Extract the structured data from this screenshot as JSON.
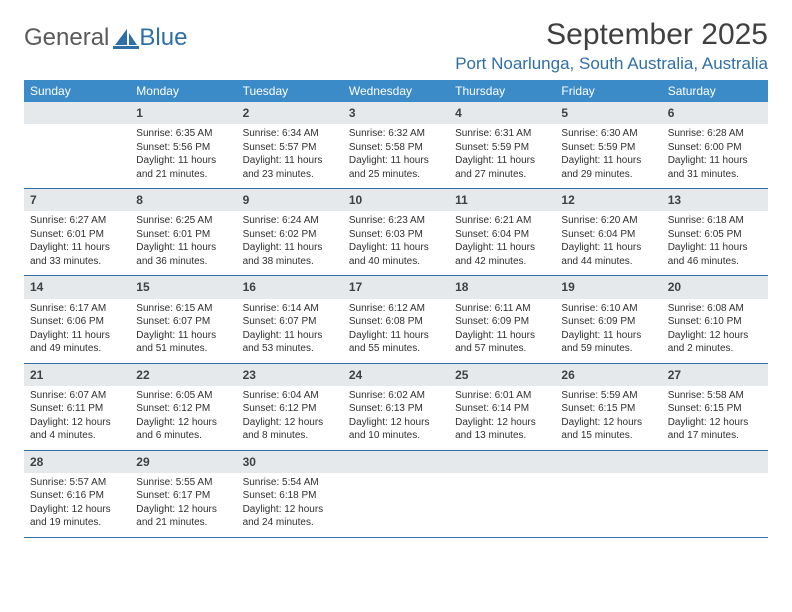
{
  "brand": {
    "part1": "General",
    "part2": "Blue"
  },
  "title": "September 2025",
  "location": "Port Noarlunga, South Australia, Australia",
  "colors": {
    "header_bg": "#3b8bc9",
    "header_text": "#ffffff",
    "daynum_bg": "#e6e9ec",
    "divider": "#2f6fa8",
    "location_text": "#2f6fa8",
    "body_text": "#303030",
    "title_text": "#404040"
  },
  "weekdays": [
    "Sunday",
    "Monday",
    "Tuesday",
    "Wednesday",
    "Thursday",
    "Friday",
    "Saturday"
  ],
  "weeks": [
    [
      {
        "blank": true
      },
      {
        "n": "1",
        "sun": "Sunrise: 6:35 AM",
        "set": "Sunset: 5:56 PM",
        "d1": "Daylight: 11 hours",
        "d2": "and 21 minutes."
      },
      {
        "n": "2",
        "sun": "Sunrise: 6:34 AM",
        "set": "Sunset: 5:57 PM",
        "d1": "Daylight: 11 hours",
        "d2": "and 23 minutes."
      },
      {
        "n": "3",
        "sun": "Sunrise: 6:32 AM",
        "set": "Sunset: 5:58 PM",
        "d1": "Daylight: 11 hours",
        "d2": "and 25 minutes."
      },
      {
        "n": "4",
        "sun": "Sunrise: 6:31 AM",
        "set": "Sunset: 5:59 PM",
        "d1": "Daylight: 11 hours",
        "d2": "and 27 minutes."
      },
      {
        "n": "5",
        "sun": "Sunrise: 6:30 AM",
        "set": "Sunset: 5:59 PM",
        "d1": "Daylight: 11 hours",
        "d2": "and 29 minutes."
      },
      {
        "n": "6",
        "sun": "Sunrise: 6:28 AM",
        "set": "Sunset: 6:00 PM",
        "d1": "Daylight: 11 hours",
        "d2": "and 31 minutes."
      }
    ],
    [
      {
        "n": "7",
        "sun": "Sunrise: 6:27 AM",
        "set": "Sunset: 6:01 PM",
        "d1": "Daylight: 11 hours",
        "d2": "and 33 minutes."
      },
      {
        "n": "8",
        "sun": "Sunrise: 6:25 AM",
        "set": "Sunset: 6:01 PM",
        "d1": "Daylight: 11 hours",
        "d2": "and 36 minutes."
      },
      {
        "n": "9",
        "sun": "Sunrise: 6:24 AM",
        "set": "Sunset: 6:02 PM",
        "d1": "Daylight: 11 hours",
        "d2": "and 38 minutes."
      },
      {
        "n": "10",
        "sun": "Sunrise: 6:23 AM",
        "set": "Sunset: 6:03 PM",
        "d1": "Daylight: 11 hours",
        "d2": "and 40 minutes."
      },
      {
        "n": "11",
        "sun": "Sunrise: 6:21 AM",
        "set": "Sunset: 6:04 PM",
        "d1": "Daylight: 11 hours",
        "d2": "and 42 minutes."
      },
      {
        "n": "12",
        "sun": "Sunrise: 6:20 AM",
        "set": "Sunset: 6:04 PM",
        "d1": "Daylight: 11 hours",
        "d2": "and 44 minutes."
      },
      {
        "n": "13",
        "sun": "Sunrise: 6:18 AM",
        "set": "Sunset: 6:05 PM",
        "d1": "Daylight: 11 hours",
        "d2": "and 46 minutes."
      }
    ],
    [
      {
        "n": "14",
        "sun": "Sunrise: 6:17 AM",
        "set": "Sunset: 6:06 PM",
        "d1": "Daylight: 11 hours",
        "d2": "and 49 minutes."
      },
      {
        "n": "15",
        "sun": "Sunrise: 6:15 AM",
        "set": "Sunset: 6:07 PM",
        "d1": "Daylight: 11 hours",
        "d2": "and 51 minutes."
      },
      {
        "n": "16",
        "sun": "Sunrise: 6:14 AM",
        "set": "Sunset: 6:07 PM",
        "d1": "Daylight: 11 hours",
        "d2": "and 53 minutes."
      },
      {
        "n": "17",
        "sun": "Sunrise: 6:12 AM",
        "set": "Sunset: 6:08 PM",
        "d1": "Daylight: 11 hours",
        "d2": "and 55 minutes."
      },
      {
        "n": "18",
        "sun": "Sunrise: 6:11 AM",
        "set": "Sunset: 6:09 PM",
        "d1": "Daylight: 11 hours",
        "d2": "and 57 minutes."
      },
      {
        "n": "19",
        "sun": "Sunrise: 6:10 AM",
        "set": "Sunset: 6:09 PM",
        "d1": "Daylight: 11 hours",
        "d2": "and 59 minutes."
      },
      {
        "n": "20",
        "sun": "Sunrise: 6:08 AM",
        "set": "Sunset: 6:10 PM",
        "d1": "Daylight: 12 hours",
        "d2": "and 2 minutes."
      }
    ],
    [
      {
        "n": "21",
        "sun": "Sunrise: 6:07 AM",
        "set": "Sunset: 6:11 PM",
        "d1": "Daylight: 12 hours",
        "d2": "and 4 minutes."
      },
      {
        "n": "22",
        "sun": "Sunrise: 6:05 AM",
        "set": "Sunset: 6:12 PM",
        "d1": "Daylight: 12 hours",
        "d2": "and 6 minutes."
      },
      {
        "n": "23",
        "sun": "Sunrise: 6:04 AM",
        "set": "Sunset: 6:12 PM",
        "d1": "Daylight: 12 hours",
        "d2": "and 8 minutes."
      },
      {
        "n": "24",
        "sun": "Sunrise: 6:02 AM",
        "set": "Sunset: 6:13 PM",
        "d1": "Daylight: 12 hours",
        "d2": "and 10 minutes."
      },
      {
        "n": "25",
        "sun": "Sunrise: 6:01 AM",
        "set": "Sunset: 6:14 PM",
        "d1": "Daylight: 12 hours",
        "d2": "and 13 minutes."
      },
      {
        "n": "26",
        "sun": "Sunrise: 5:59 AM",
        "set": "Sunset: 6:15 PM",
        "d1": "Daylight: 12 hours",
        "d2": "and 15 minutes."
      },
      {
        "n": "27",
        "sun": "Sunrise: 5:58 AM",
        "set": "Sunset: 6:15 PM",
        "d1": "Daylight: 12 hours",
        "d2": "and 17 minutes."
      }
    ],
    [
      {
        "n": "28",
        "sun": "Sunrise: 5:57 AM",
        "set": "Sunset: 6:16 PM",
        "d1": "Daylight: 12 hours",
        "d2": "and 19 minutes."
      },
      {
        "n": "29",
        "sun": "Sunrise: 5:55 AM",
        "set": "Sunset: 6:17 PM",
        "d1": "Daylight: 12 hours",
        "d2": "and 21 minutes."
      },
      {
        "n": "30",
        "sun": "Sunrise: 5:54 AM",
        "set": "Sunset: 6:18 PM",
        "d1": "Daylight: 12 hours",
        "d2": "and 24 minutes."
      },
      {
        "blank": true
      },
      {
        "blank": true
      },
      {
        "blank": true
      },
      {
        "blank": true
      }
    ]
  ]
}
